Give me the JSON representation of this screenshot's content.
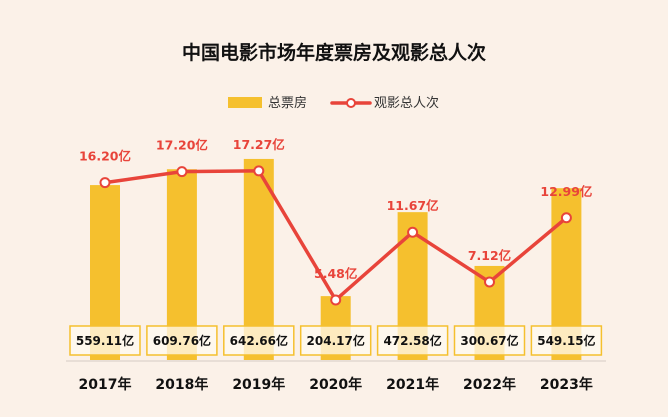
{
  "chart_data": {
    "type": "bar+line",
    "title": "中国电影市场年度票房及观影总人次",
    "categories": [
      "2017年",
      "2018年",
      "2019年",
      "2020年",
      "2021年",
      "2022年",
      "2023年"
    ],
    "series": [
      {
        "name": "总票房",
        "type": "bar",
        "values": [
          559.11,
          609.76,
          642.66,
          204.17,
          472.58,
          300.67,
          549.15
        ],
        "labels": [
          "559.11亿",
          "609.76亿",
          "642.66亿",
          "204.17亿",
          "472.58亿",
          "300.67亿",
          "549.15亿"
        ],
        "color": "#f5c02e"
      },
      {
        "name": "观影总人次",
        "type": "line",
        "values": [
          16.2,
          17.2,
          17.27,
          5.48,
          11.67,
          7.12,
          12.99
        ],
        "labels": [
          "16.20亿",
          "17.20亿",
          "17.27亿",
          "5.48亿",
          "11.67亿",
          "7.12亿",
          "12.99亿"
        ],
        "color": "#e8443a"
      }
    ],
    "bar_axis_range": [
      0,
      700
    ],
    "line_axis_range": [
      0,
      20
    ],
    "grid": false,
    "legend_placement": "top-center",
    "background": "#fbf1e8"
  }
}
